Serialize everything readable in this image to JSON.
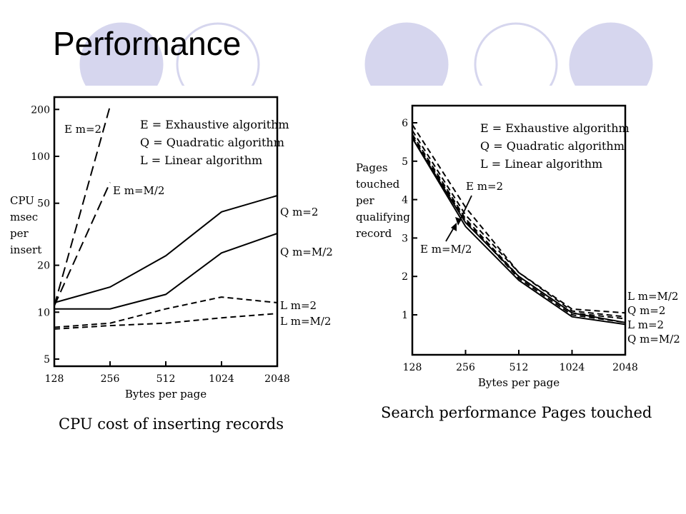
{
  "slide": {
    "title": "Performance",
    "circle_fill": "#d6d6ee",
    "circle_stroke": "#d6d6ee"
  },
  "chart_data": [
    {
      "type": "line",
      "title": "",
      "caption": "CPU cost of inserting records",
      "xlabel": "Bytes per page",
      "ylabel": [
        "CPU",
        "msec",
        "per",
        "insert"
      ],
      "x": [
        128,
        256,
        512,
        1024,
        2048
      ],
      "yscale": "log",
      "yticks": [
        5,
        10,
        20,
        50,
        100,
        200
      ],
      "ylim": [
        4.5,
        240
      ],
      "legend": [
        "E = Exhaustive algorithm",
        "Q = Quadratic algorithm",
        "L = Linear algorithm"
      ],
      "series": [
        {
          "name": "E m=2",
          "style": "long-dash",
          "points": [
            [
              128,
              11
            ],
            [
              256,
              210
            ]
          ]
        },
        {
          "name": "E m=M/2",
          "style": "long-dash",
          "points": [
            [
              128,
              11
            ],
            [
              256,
              68
            ]
          ]
        },
        {
          "name": "Q m=2",
          "style": "solid",
          "points": [
            [
              128,
              11.5
            ],
            [
              256,
              14.5
            ],
            [
              512,
              23
            ],
            [
              1024,
              44
            ],
            [
              2048,
              56
            ]
          ]
        },
        {
          "name": "Q m=M/2",
          "style": "solid",
          "points": [
            [
              128,
              10.5
            ],
            [
              256,
              10.5
            ],
            [
              512,
              13
            ],
            [
              1024,
              24
            ],
            [
              2048,
              32
            ]
          ]
        },
        {
          "name": "L m=2",
          "style": "dash",
          "points": [
            [
              128,
              8
            ],
            [
              256,
              8.5
            ],
            [
              512,
              10.5
            ],
            [
              1024,
              12.5
            ],
            [
              2048,
              11.5
            ]
          ]
        },
        {
          "name": "L m=M/2",
          "style": "dash",
          "points": [
            [
              128,
              7.8
            ],
            [
              256,
              8.2
            ],
            [
              512,
              8.5
            ],
            [
              1024,
              9.2
            ],
            [
              2048,
              9.8
            ]
          ]
        }
      ]
    },
    {
      "type": "line",
      "title": "",
      "caption": "Search performance  Pages touched",
      "xlabel": "Bytes per page",
      "ylabel": [
        "Pages",
        "touched",
        "per",
        "qualifying",
        "record"
      ],
      "x": [
        128,
        256,
        512,
        1024,
        2048
      ],
      "yscale": "linear",
      "yticks": [
        1,
        2,
        3,
        4,
        5,
        6
      ],
      "ylim": [
        0,
        6.3
      ],
      "legend": [
        "E = Exhaustive algorithm",
        "Q = Quadratic algorithm",
        "L = Linear algorithm"
      ],
      "annotations": [
        "E m=2",
        "E m=M/2"
      ],
      "series": [
        {
          "name": "E m=2",
          "style": "solid",
          "points": [
            [
              128,
              5.6
            ],
            [
              256,
              3.3
            ],
            [
              512,
              1.9
            ],
            [
              1024,
              0.95
            ],
            [
              2048,
              0.75
            ]
          ]
        },
        {
          "name": "E m=M/2",
          "style": "solid",
          "points": [
            [
              128,
              5.6
            ],
            [
              256,
              3.4
            ],
            [
              512,
              2.0
            ],
            [
              1024,
              1.05
            ],
            [
              2048,
              0.8
            ]
          ]
        },
        {
          "name": "L m=M/2",
          "style": "dash",
          "points": [
            [
              128,
              5.95
            ],
            [
              256,
              3.8
            ],
            [
              512,
              2.1
            ],
            [
              1024,
              1.15
            ],
            [
              2048,
              1.05
            ]
          ]
        },
        {
          "name": "Q m=2",
          "style": "dash",
          "points": [
            [
              128,
              5.8
            ],
            [
              256,
              3.6
            ],
            [
              512,
              2.1
            ],
            [
              1024,
              1.1
            ],
            [
              2048,
              0.95
            ]
          ]
        },
        {
          "name": "L m=2",
          "style": "dash",
          "points": [
            [
              128,
              5.7
            ],
            [
              256,
              3.5
            ],
            [
              512,
              2.0
            ],
            [
              1024,
              1.05
            ],
            [
              2048,
              0.9
            ]
          ]
        },
        {
          "name": "Q m=M/2",
          "style": "dash",
          "points": [
            [
              128,
              5.65
            ],
            [
              256,
              3.45
            ],
            [
              512,
              1.95
            ],
            [
              1024,
              1.0
            ],
            [
              2048,
              0.8
            ]
          ]
        }
      ],
      "end_labels": [
        "L m=M/2",
        "Q m=2",
        "L m=2",
        "Q m=M/2"
      ]
    }
  ]
}
